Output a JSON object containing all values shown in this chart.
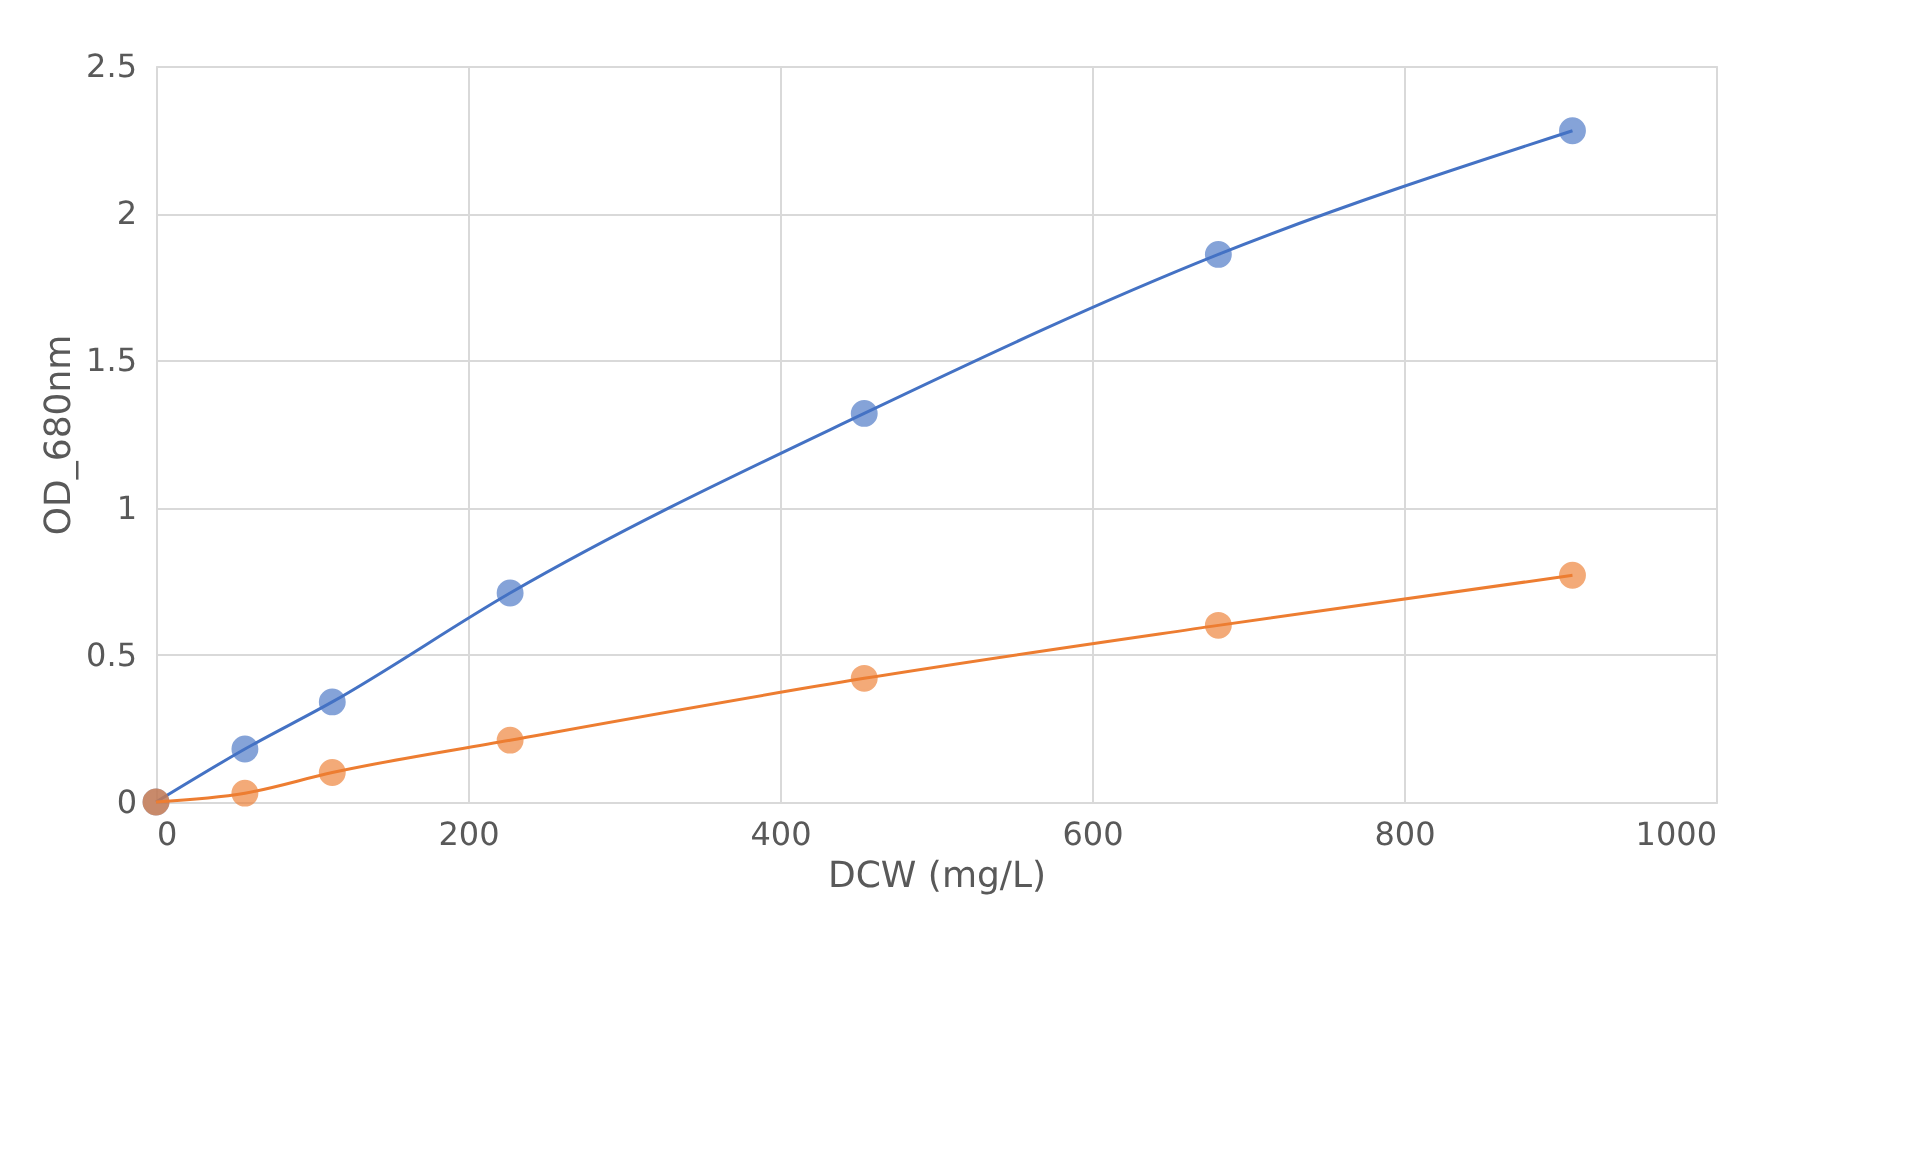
{
  "chart_data": {
    "type": "line",
    "xlabel": "DCW (mg/L)",
    "ylabel": "OD_680nm",
    "x": [
      0,
      57,
      113,
      227,
      454,
      681,
      908
    ],
    "series": [
      {
        "color": "#4472c4",
        "values": [
          0,
          0.18,
          0.34,
          0.71,
          1.32,
          1.86,
          2.28
        ]
      },
      {
        "color": "#ed7d31",
        "values": [
          0,
          0.03,
          0.1,
          0.21,
          0.42,
          0.6,
          0.77
        ]
      }
    ],
    "xlim": [
      0,
      1000
    ],
    "xticks": [
      0,
      200,
      400,
      600,
      800,
      1000
    ],
    "ylim": [
      0,
      2.5
    ],
    "yticks": [
      0,
      0.5,
      1,
      1.5,
      2,
      2.5
    ],
    "grid": true,
    "marker": "circle",
    "line_style": "solid"
  }
}
